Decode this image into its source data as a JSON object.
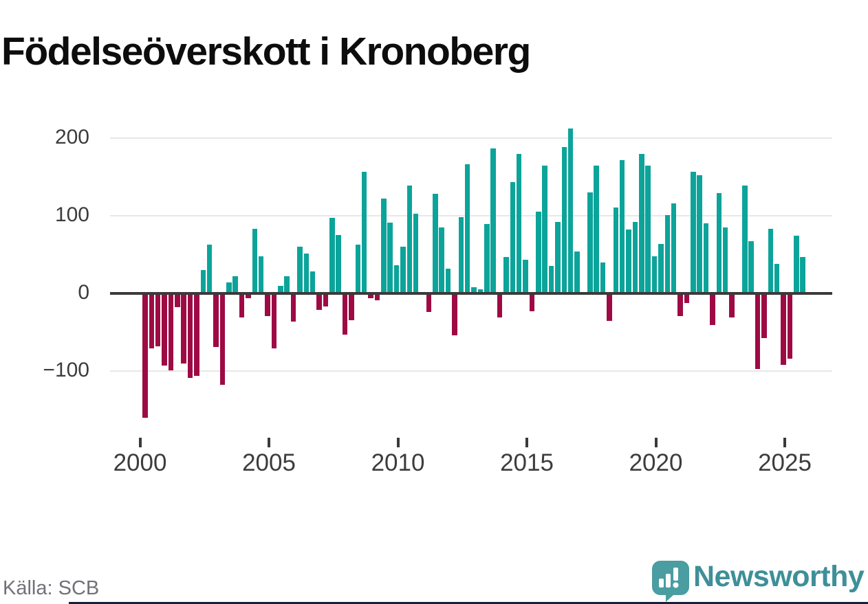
{
  "title": "Födelseöverskott i Kronoberg",
  "source": {
    "label": "Källa: SCB"
  },
  "branding": {
    "name": "Newsworthy"
  },
  "colors": {
    "positive": "#0ca49a",
    "negative": "#9e0b44",
    "axis": "#3a3a3a",
    "grid": "#e7e7e7",
    "title_text": "#0d0d0d",
    "tick_text": "#3c3c3c",
    "source_text": "#71717a",
    "brand_teal": "#3e8f98",
    "brand_icon": "#4a9da0",
    "footer_bar": "#15203b"
  },
  "y_axis": {
    "ticks": [
      {
        "label": "200",
        "value": 200
      },
      {
        "label": "100",
        "value": 100
      },
      {
        "label": "0",
        "value": 0
      },
      {
        "label": "−100",
        "value": -100
      }
    ]
  },
  "x_axis": {
    "ticks": [
      {
        "label": "2000",
        "year": 2000
      },
      {
        "label": "2005",
        "year": 2005
      },
      {
        "label": "2010",
        "year": 2010
      },
      {
        "label": "2015",
        "year": 2015
      },
      {
        "label": "2020",
        "year": 2020
      },
      {
        "label": "2025",
        "year": 2025
      }
    ]
  },
  "chart_data": {
    "type": "bar",
    "title": "Födelseöverskott i Kronoberg",
    "xlabel": "",
    "ylabel": "",
    "frequency": "quarterly",
    "x_range": [
      "2000 Q1",
      "2025 Q3"
    ],
    "ylim": [
      -175,
      225
    ],
    "grid": "horizontal",
    "legend": "none",
    "positive_color": "#0ca49a",
    "negative_color": "#9e0b44",
    "categories": [
      "2000 Q1",
      "2000 Q2",
      "2000 Q3",
      "2000 Q4",
      "2001 Q1",
      "2001 Q2",
      "2001 Q3",
      "2001 Q4",
      "2002 Q1",
      "2002 Q2",
      "2002 Q3",
      "2002 Q4",
      "2003 Q1",
      "2003 Q2",
      "2003 Q3",
      "2003 Q4",
      "2004 Q1",
      "2004 Q2",
      "2004 Q3",
      "2004 Q4",
      "2005 Q1",
      "2005 Q2",
      "2005 Q3",
      "2005 Q4",
      "2006 Q1",
      "2006 Q2",
      "2006 Q3",
      "2006 Q4",
      "2007 Q1",
      "2007 Q2",
      "2007 Q3",
      "2007 Q4",
      "2008 Q1",
      "2008 Q2",
      "2008 Q3",
      "2008 Q4",
      "2009 Q1",
      "2009 Q2",
      "2009 Q3",
      "2009 Q4",
      "2010 Q1",
      "2010 Q2",
      "2010 Q3",
      "2010 Q4",
      "2011 Q1",
      "2011 Q2",
      "2011 Q3",
      "2011 Q4",
      "2012 Q1",
      "2012 Q2",
      "2012 Q3",
      "2012 Q4",
      "2013 Q1",
      "2013 Q2",
      "2013 Q3",
      "2013 Q4",
      "2014 Q1",
      "2014 Q2",
      "2014 Q3",
      "2014 Q4",
      "2015 Q1",
      "2015 Q2",
      "2015 Q3",
      "2015 Q4",
      "2016 Q1",
      "2016 Q2",
      "2016 Q3",
      "2016 Q4",
      "2017 Q1",
      "2017 Q2",
      "2017 Q3",
      "2017 Q4",
      "2018 Q1",
      "2018 Q2",
      "2018 Q3",
      "2018 Q4",
      "2019 Q1",
      "2019 Q2",
      "2019 Q3",
      "2019 Q4",
      "2020 Q1",
      "2020 Q2",
      "2020 Q3",
      "2020 Q4",
      "2021 Q1",
      "2021 Q2",
      "2021 Q3",
      "2021 Q4",
      "2022 Q1",
      "2022 Q2",
      "2022 Q3",
      "2022 Q4",
      "2023 Q1",
      "2023 Q2",
      "2023 Q3",
      "2023 Q4",
      "2024 Q1",
      "2024 Q2",
      "2024 Q3",
      "2024 Q4",
      "2025 Q1",
      "2025 Q2",
      "2025 Q3"
    ],
    "values": [
      -160,
      -71,
      -68,
      -93,
      -99,
      -18,
      -90,
      -109,
      -106,
      30,
      63,
      -69,
      -117,
      14,
      22,
      -31,
      -6,
      83,
      48,
      -29,
      -71,
      10,
      22,
      -36,
      60,
      51,
      28,
      -21,
      -17,
      97,
      75,
      -53,
      -34,
      63,
      156,
      -6,
      -9,
      122,
      91,
      36,
      60,
      139,
      102,
      0,
      -24,
      128,
      85,
      32,
      -54,
      98,
      166,
      8,
      5,
      89,
      186,
      -31,
      47,
      143,
      179,
      43,
      -23,
      105,
      164,
      35,
      92,
      188,
      212,
      54,
      0,
      130,
      164,
      40,
      -35,
      110,
      171,
      82,
      92,
      179,
      164,
      48,
      64,
      101,
      116,
      -29,
      -12,
      156,
      152,
      90,
      -41,
      129,
      85,
      -31,
      0,
      139,
      67,
      -97,
      -57,
      83,
      38,
      -92,
      -84,
      74,
      47
    ]
  }
}
